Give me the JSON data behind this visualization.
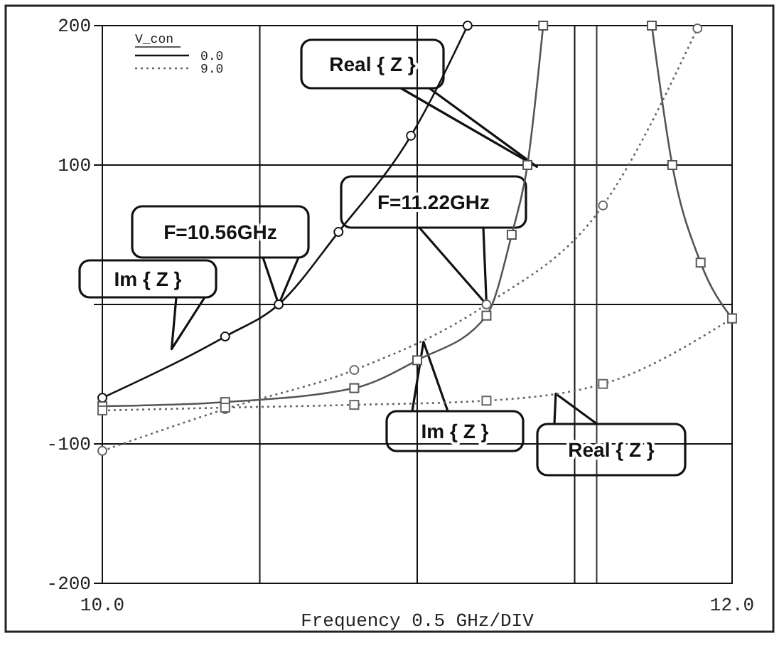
{
  "chart_data": {
    "type": "line",
    "xlabel": "Frequency 0.5 GHz/DIV",
    "legend_title": "V_con",
    "legend": "top left",
    "grid": true,
    "marker": "circle",
    "xlim": [
      10,
      12
    ],
    "xticks": [
      {
        "value": 10,
        "label": "10.0"
      },
      {
        "value": 10.5,
        "label": null
      },
      {
        "value": 11,
        "label": null
      },
      {
        "value": 11.5,
        "label": null
      },
      {
        "value": 12,
        "label": "12.0"
      }
    ],
    "ylim": [
      -200,
      200
    ],
    "yticks": [
      -200,
      -100,
      {
        "value": 0,
        "label": null
      },
      100,
      200
    ],
    "ref_lines": [
      {
        "axis": "x",
        "value": 11.57
      }
    ],
    "series": [
      {
        "name": "0.0",
        "color": "#111111",
        "line_style": "solid",
        "x": [
          10,
          10.39,
          10.56,
          10.75,
          10.98,
          11.16
        ],
        "values": [
          -67,
          -23,
          0,
          52,
          121,
          200
        ]
      },
      {
        "color": "#555555",
        "line_style": "solid",
        "marker": "square",
        "x": [
          10,
          10.39,
          10.8,
          11,
          11.22,
          11.3,
          11.35,
          11.4,
          11.57,
          11.745,
          11.81,
          11.9,
          12
        ],
        "values": [
          -73,
          -70,
          -60,
          -40,
          -8,
          50,
          100,
          200,
          null,
          200,
          100,
          30,
          -10
        ]
      },
      {
        "name": "9.0",
        "color": "#666666",
        "line_style": "dotted",
        "x": [
          10,
          10.39,
          10.8,
          11.22,
          11.59,
          11.89
        ],
        "values": [
          -105,
          -75,
          -47,
          0,
          71,
          198
        ]
      },
      {
        "color": "#666666",
        "line_style": "dotted",
        "marker": "square",
        "x": [
          10,
          10.39,
          10.8,
          11.22,
          11.59,
          12
        ],
        "values": [
          -76,
          -74,
          -72,
          -69,
          -57,
          -10
        ]
      }
    ],
    "annotations": [
      "Real { Z }",
      "F=10.56GHz",
      "F=11.22GHz",
      "Im { Z }",
      "Im { Z }",
      "Real { Z }"
    ]
  }
}
